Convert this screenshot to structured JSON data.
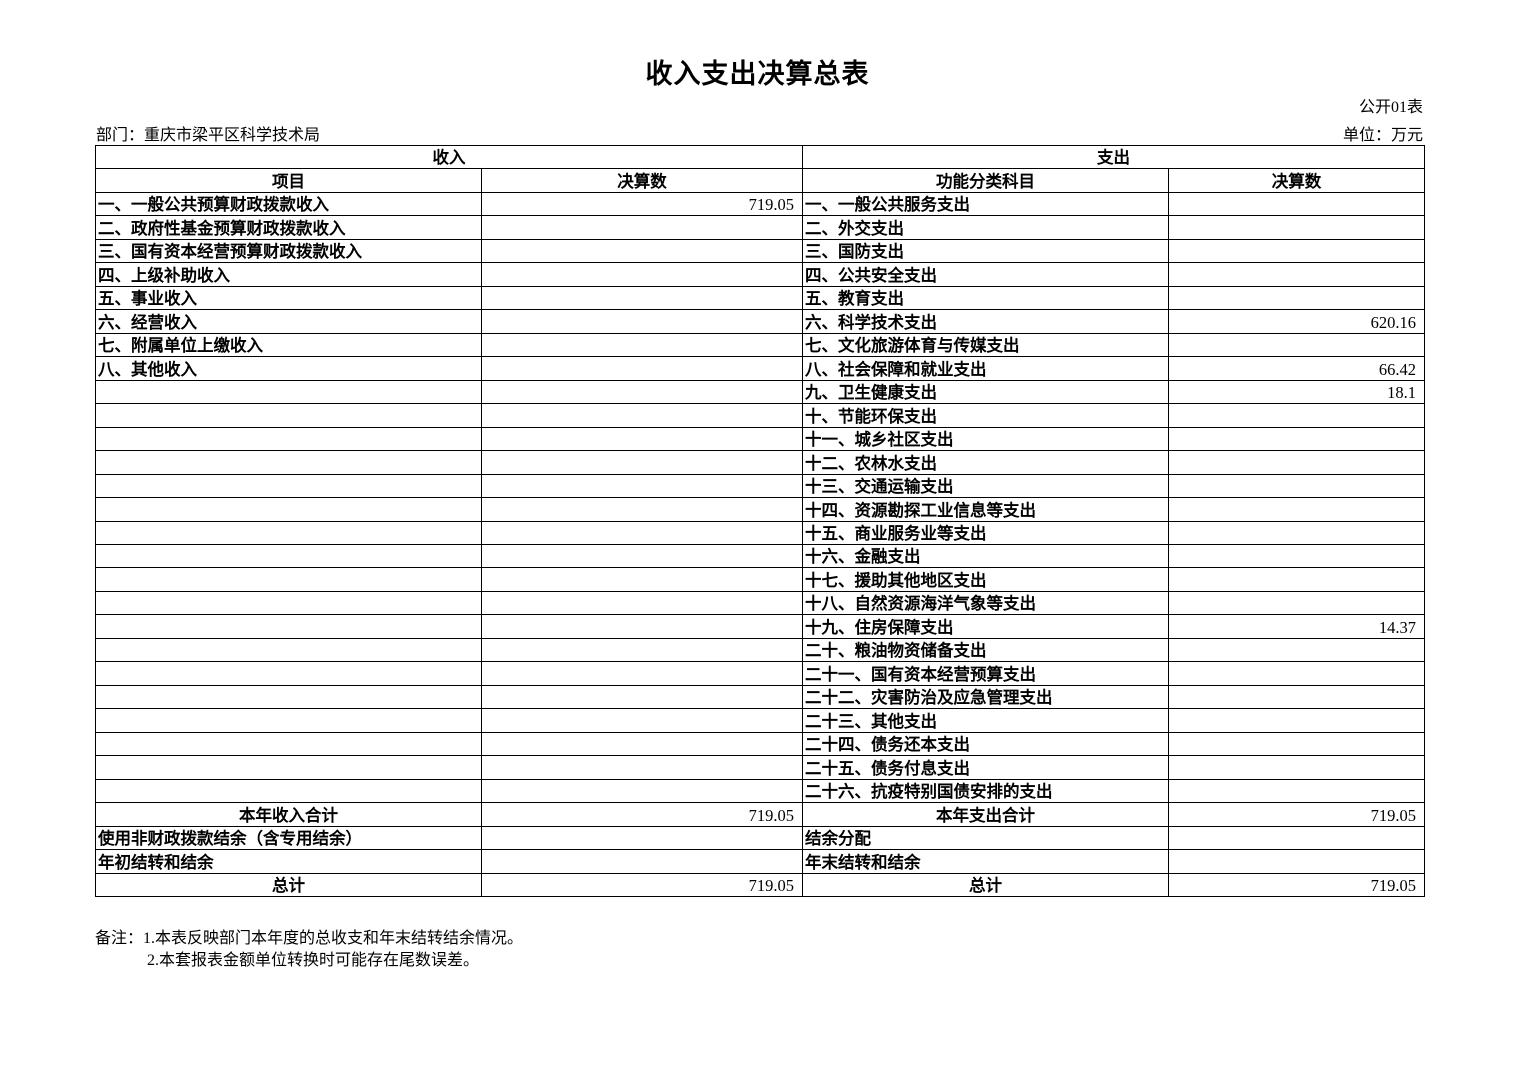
{
  "title": "收入支出决算总表",
  "form_no": "公开01表",
  "department": "部门：重庆市梁平区科学技术局",
  "unit": "单位：万元",
  "headers": {
    "income": "收入",
    "expenditure": "支出",
    "item": "项目",
    "amount": "决算数",
    "func_category": "功能分类科目",
    "amount2": "决算数"
  },
  "income_items": [
    {
      "label": "一、一般公共预算财政拨款收入",
      "value": "719.05"
    },
    {
      "label": "二、政府性基金预算财政拨款收入",
      "value": ""
    },
    {
      "label": "三、国有资本经营预算财政拨款收入",
      "value": ""
    },
    {
      "label": "四、上级补助收入",
      "value": ""
    },
    {
      "label": "五、事业收入",
      "value": ""
    },
    {
      "label": "六、经营收入",
      "value": ""
    },
    {
      "label": "七、附属单位上缴收入",
      "value": ""
    },
    {
      "label": "八、其他收入",
      "value": ""
    }
  ],
  "expenditure_items": [
    {
      "label": "一、一般公共服务支出",
      "value": ""
    },
    {
      "label": "二、外交支出",
      "value": ""
    },
    {
      "label": "三、国防支出",
      "value": ""
    },
    {
      "label": "四、公共安全支出",
      "value": ""
    },
    {
      "label": "五、教育支出",
      "value": ""
    },
    {
      "label": "六、科学技术支出",
      "value": "620.16"
    },
    {
      "label": "七、文化旅游体育与传媒支出",
      "value": ""
    },
    {
      "label": "八、社会保障和就业支出",
      "value": "66.42"
    },
    {
      "label": "九、卫生健康支出",
      "value": "18.1"
    },
    {
      "label": "十、节能环保支出",
      "value": ""
    },
    {
      "label": "十一、城乡社区支出",
      "value": ""
    },
    {
      "label": "十二、农林水支出",
      "value": ""
    },
    {
      "label": "十三、交通运输支出",
      "value": ""
    },
    {
      "label": "十四、资源勘探工业信息等支出",
      "value": ""
    },
    {
      "label": "十五、商业服务业等支出",
      "value": ""
    },
    {
      "label": "十六、金融支出",
      "value": ""
    },
    {
      "label": "十七、援助其他地区支出",
      "value": ""
    },
    {
      "label": "十八、自然资源海洋气象等支出",
      "value": ""
    },
    {
      "label": "十九、住房保障支出",
      "value": "14.37"
    },
    {
      "label": "二十、粮油物资储备支出",
      "value": ""
    },
    {
      "label": "二十一、国有资本经营预算支出",
      "value": ""
    },
    {
      "label": "二十二、灾害防治及应急管理支出",
      "value": ""
    },
    {
      "label": "二十三、其他支出",
      "value": ""
    },
    {
      "label": "二十四、债务还本支出",
      "value": ""
    },
    {
      "label": "二十五、债务付息支出",
      "value": ""
    },
    {
      "label": "二十六、抗疫特别国债安排的支出",
      "value": ""
    }
  ],
  "summary_rows": [
    {
      "left_label": "本年收入合计",
      "left_value": "719.05",
      "right_label": "本年支出合计",
      "right_value": "719.05",
      "centered": true
    },
    {
      "left_label": "使用非财政拨款结余（含专用结余）",
      "left_value": "",
      "right_label": "结余分配",
      "right_value": "",
      "centered": false
    },
    {
      "left_label": "年初结转和结余",
      "left_value": "",
      "right_label": "年末结转和结余",
      "right_value": "",
      "centered": false
    },
    {
      "left_label": "总计",
      "left_value": "719.05",
      "right_label": "总计",
      "right_value": "719.05",
      "centered": true
    }
  ],
  "notes": {
    "line1": "备注：1.本表反映部门本年度的总收支和年末结转结余情况。",
    "line2": "2.本套报表金额单位转换时可能存在尾数误差。"
  }
}
